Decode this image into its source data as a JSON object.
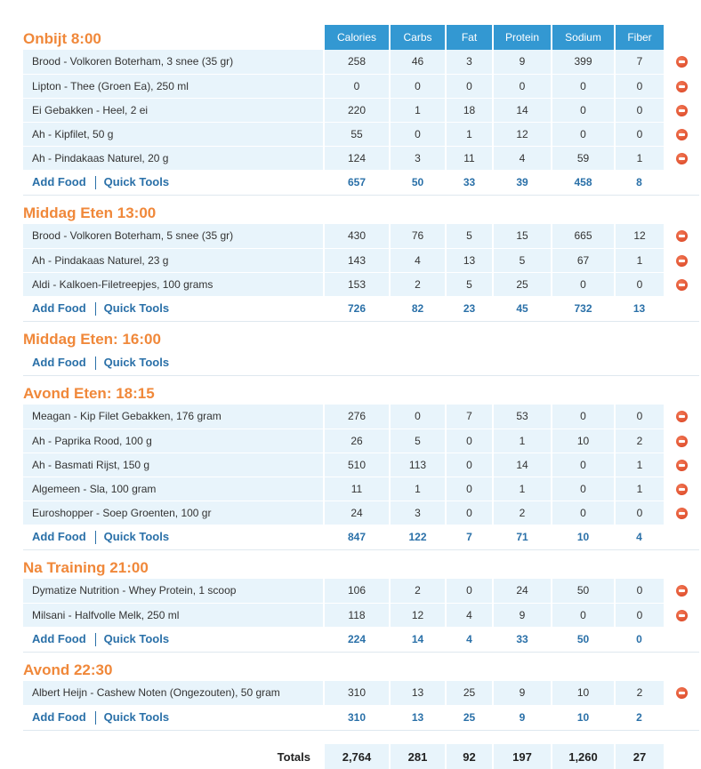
{
  "columns": [
    "Calories",
    "Carbs",
    "Fat",
    "Protein",
    "Sodium",
    "Fiber"
  ],
  "links": {
    "add_food": "Add Food",
    "quick_tools": "Quick Tools"
  },
  "meals": [
    {
      "title": "Onbijt 8:00",
      "foods": [
        {
          "name": "Brood - Volkoren Boterham, 3 snee (35 gr)",
          "values": [
            "258",
            "46",
            "3",
            "9",
            "399",
            "7"
          ]
        },
        {
          "name": "Lipton - Thee (Groen Ea), 250 ml",
          "values": [
            "0",
            "0",
            "0",
            "0",
            "0",
            "0"
          ]
        },
        {
          "name": "Ei Gebakken - Heel, 2 ei",
          "values": [
            "220",
            "1",
            "18",
            "14",
            "0",
            "0"
          ]
        },
        {
          "name": "Ah - Kipfilet, 50 g",
          "values": [
            "55",
            "0",
            "1",
            "12",
            "0",
            "0"
          ]
        },
        {
          "name": "Ah - Pindakaas Naturel, 20 g",
          "values": [
            "124",
            "3",
            "11",
            "4",
            "59",
            "1"
          ]
        }
      ],
      "totals": [
        "657",
        "50",
        "33",
        "39",
        "458",
        "8"
      ]
    },
    {
      "title": "Middag Eten 13:00",
      "foods": [
        {
          "name": "Brood - Volkoren Boterham, 5 snee (35 gr)",
          "values": [
            "430",
            "76",
            "5",
            "15",
            "665",
            "12"
          ]
        },
        {
          "name": "Ah - Pindakaas Naturel, 23 g",
          "values": [
            "143",
            "4",
            "13",
            "5",
            "67",
            "1"
          ]
        },
        {
          "name": "Aldi - Kalkoen-Filetreepjes, 100 grams",
          "values": [
            "153",
            "2",
            "5",
            "25",
            "0",
            "0"
          ]
        }
      ],
      "totals": [
        "726",
        "82",
        "23",
        "45",
        "732",
        "13"
      ]
    },
    {
      "title": "Middag Eten: 16:00",
      "foods": [],
      "totals": []
    },
    {
      "title": "Avond Eten: 18:15",
      "foods": [
        {
          "name": "Meagan - Kip Filet Gebakken, 176 gram",
          "values": [
            "276",
            "0",
            "7",
            "53",
            "0",
            "0"
          ]
        },
        {
          "name": "Ah - Paprika Rood, 100 g",
          "values": [
            "26",
            "5",
            "0",
            "1",
            "10",
            "2"
          ]
        },
        {
          "name": "Ah - Basmati Rijst, 150 g",
          "values": [
            "510",
            "113",
            "0",
            "14",
            "0",
            "1"
          ]
        },
        {
          "name": "Algemeen - Sla, 100 gram",
          "values": [
            "11",
            "1",
            "0",
            "1",
            "0",
            "1"
          ]
        },
        {
          "name": "Euroshopper - Soep Groenten, 100 gr",
          "values": [
            "24",
            "3",
            "0",
            "2",
            "0",
            "0"
          ]
        }
      ],
      "totals": [
        "847",
        "122",
        "7",
        "71",
        "10",
        "4"
      ]
    },
    {
      "title": "Na Training 21:00",
      "foods": [
        {
          "name": "Dymatize Nutrition - Whey Protein, 1 scoop",
          "values": [
            "106",
            "2",
            "0",
            "24",
            "50",
            "0"
          ]
        },
        {
          "name": "Milsani - Halfvolle Melk, 250 ml",
          "values": [
            "118",
            "12",
            "4",
            "9",
            "0",
            "0"
          ]
        }
      ],
      "totals": [
        "224",
        "14",
        "4",
        "33",
        "50",
        "0"
      ]
    },
    {
      "title": "Avond 22:30",
      "foods": [
        {
          "name": "Albert Heijn - Cashew Noten (Ongezouten), 50 gram",
          "values": [
            "310",
            "13",
            "25",
            "9",
            "10",
            "2"
          ]
        }
      ],
      "totals": [
        "310",
        "13",
        "25",
        "9",
        "10",
        "2"
      ]
    }
  ],
  "grand_totals": {
    "label": "Totals",
    "values": [
      "2,764",
      "281",
      "92",
      "197",
      "1,260",
      "27"
    ]
  },
  "icons": {
    "delete": "remove-circle-icon"
  },
  "colors": {
    "meal_title": "#f0883a",
    "header_bg": "#3398d2",
    "row_bg": "#e8f4fb",
    "link": "#2a70a8"
  }
}
